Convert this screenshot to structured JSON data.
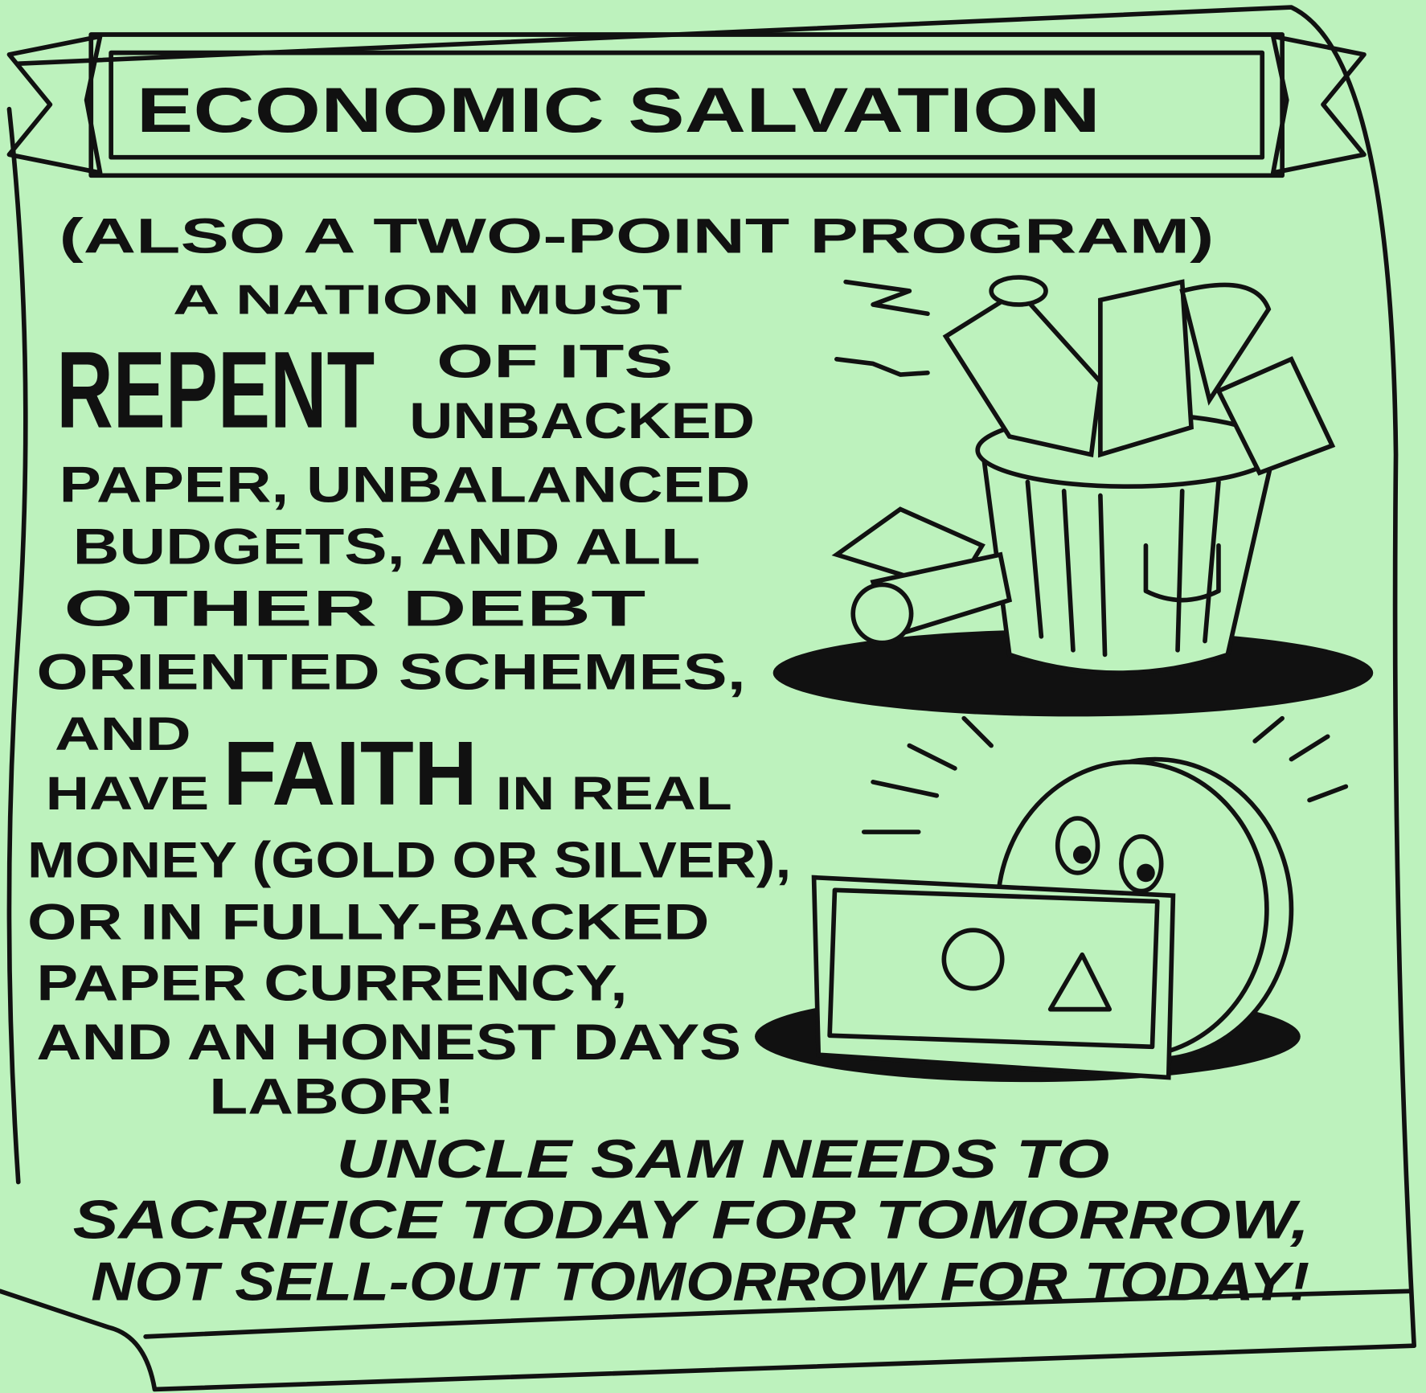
{
  "title": "ECONOMIC SALVATION",
  "subtitle": "(ALSO A TWO-POINT PROGRAM)",
  "body": [
    "A NATION MUST",
    "REPENT",
    "OF ITS",
    "UNBACKED",
    "PAPER, UNBALANCED",
    "BUDGETS, AND ALL",
    "OTHER DEBT",
    "ORIENTED SCHEMES,",
    "AND",
    "HAVE",
    "FAITH",
    "IN REAL",
    "MONEY (GOLD OR SILVER),",
    "OR IN FULLY-BACKED",
    "PAPER CURRENCY,",
    "AND AN HONEST DAYS",
    "LABOR!"
  ],
  "conclusion": [
    "UNCLE SAM NEEDS TO",
    "SACRIFICE TODAY FOR TOMORROW,",
    "NOT SELL-OUT TOMORROW FOR TODAY!"
  ]
}
